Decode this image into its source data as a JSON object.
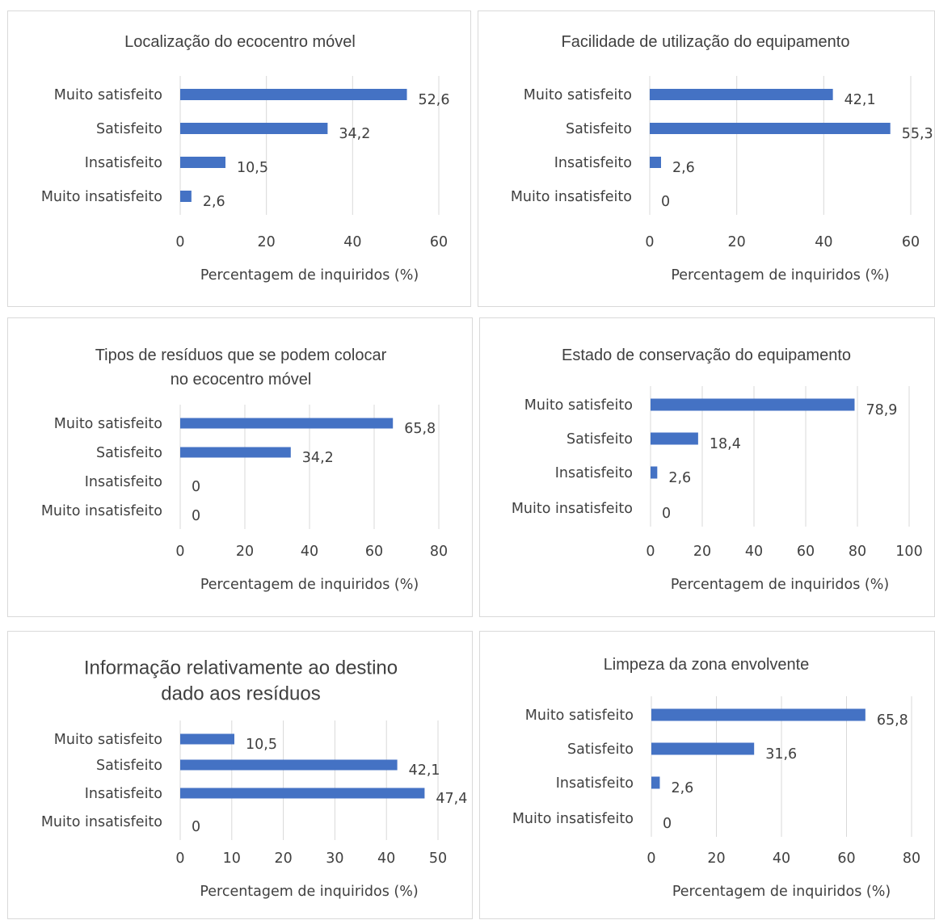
{
  "chart_data": [
    {
      "type": "bar",
      "orientation": "horizontal",
      "title_lines": [
        "Localização do ecocentro móvel"
      ],
      "categories": [
        "Muito satisfeito",
        "Satisfeito",
        "Insatisfeito",
        "Muito insatisfeito"
      ],
      "values": [
        52.6,
        34.2,
        10.5,
        2.6
      ],
      "value_labels": [
        "52,6",
        "34,2",
        "10,5",
        "2,6"
      ],
      "xlim": [
        0,
        60
      ],
      "xticks": [
        0,
        20,
        40,
        60
      ],
      "xlabel": "Percentagem de inquiridos (%)",
      "grid": true,
      "bar_color": "#4472c4"
    },
    {
      "type": "bar",
      "orientation": "horizontal",
      "title_lines": [
        "Facilidade de utilização do equipamento"
      ],
      "categories": [
        "Muito satisfeito",
        "Satisfeito",
        "Insatisfeito",
        "Muito insatisfeito"
      ],
      "values": [
        42.1,
        55.3,
        2.6,
        0
      ],
      "value_labels": [
        "42,1",
        "55,3",
        "2,6",
        "0"
      ],
      "xlim": [
        0,
        60
      ],
      "xticks": [
        0,
        20,
        40,
        60
      ],
      "xlabel": "Percentagem de inquiridos (%)",
      "grid": true,
      "bar_color": "#4472c4"
    },
    {
      "type": "bar",
      "orientation": "horizontal",
      "title_lines": [
        "Tipos de resíduos que se podem colocar",
        "no ecocentro móvel"
      ],
      "categories": [
        "Muito satisfeito",
        "Satisfeito",
        "Insatisfeito",
        "Muito insatisfeito"
      ],
      "values": [
        65.8,
        34.2,
        0,
        0
      ],
      "value_labels": [
        "65,8",
        "34,2",
        "0",
        "0"
      ],
      "xlim": [
        0,
        80
      ],
      "xticks": [
        0,
        20,
        40,
        60,
        80
      ],
      "xlabel": "Percentagem de inquiridos (%)",
      "grid": true,
      "bar_color": "#4472c4"
    },
    {
      "type": "bar",
      "orientation": "horizontal",
      "title_lines": [
        "Estado de conservação do equipamento"
      ],
      "categories": [
        "Muito satisfeito",
        "Satisfeito",
        "Insatisfeito",
        "Muito insatisfeito"
      ],
      "values": [
        78.9,
        18.4,
        2.6,
        0
      ],
      "value_labels": [
        "78,9",
        "18,4",
        "2,6",
        "0"
      ],
      "xlim": [
        0,
        100
      ],
      "xticks": [
        0,
        20,
        40,
        60,
        80,
        100
      ],
      "xlabel": "Percentagem de inquiridos (%)",
      "grid": true,
      "bar_color": "#4472c4"
    },
    {
      "type": "bar",
      "orientation": "horizontal",
      "title_lines": [
        "Informação relativamente ao destino",
        "dado aos resíduos"
      ],
      "categories": [
        "Muito satisfeito",
        "Satisfeito",
        "Insatisfeito",
        "Muito insatisfeito"
      ],
      "values": [
        10.5,
        42.1,
        47.4,
        0
      ],
      "value_labels": [
        "10,5",
        "42,1",
        "47,4",
        "0"
      ],
      "xlim": [
        0,
        50
      ],
      "xticks": [
        0,
        10,
        20,
        30,
        40,
        50
      ],
      "xlabel": "Percentagem de inquiridos (%)",
      "grid": true,
      "bar_color": "#4472c4"
    },
    {
      "type": "bar",
      "orientation": "horizontal",
      "title_lines": [
        "Limpeza da zona envolvente"
      ],
      "categories": [
        "Muito satisfeito",
        "Satisfeito",
        "Insatisfeito",
        "Muito insatisfeito"
      ],
      "values": [
        65.8,
        31.6,
        2.6,
        0
      ],
      "value_labels": [
        "65,8",
        "31,6",
        "2,6",
        "0"
      ],
      "xlim": [
        0,
        80
      ],
      "xticks": [
        0,
        20,
        40,
        60,
        80
      ],
      "xlabel": "Percentagem de inquiridos (%)",
      "grid": true,
      "bar_color": "#4472c4"
    }
  ]
}
